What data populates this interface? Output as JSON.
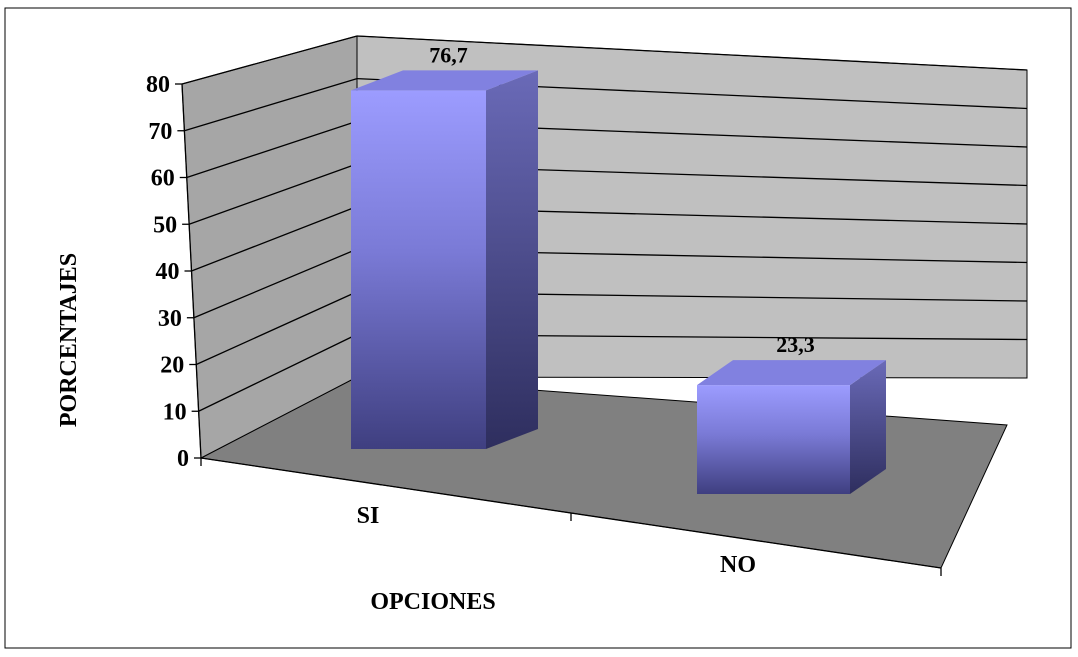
{
  "chart_data": {
    "type": "bar",
    "categories": [
      "SI",
      "NO"
    ],
    "values": [
      76.7,
      23.3
    ],
    "data_labels": [
      "76,7",
      "23,3"
    ],
    "xlabel": "OPCIONES",
    "ylabel": "PORCENTAJES",
    "ylim": [
      0,
      80
    ],
    "yticks": [
      "0",
      "10",
      "20",
      "30",
      "40",
      "50",
      "60",
      "70",
      "80"
    ],
    "grid": true,
    "three_d": true,
    "legend": "none",
    "colors": {
      "bar_front_top": "#9999ff",
      "bar_front_bottom": "#3b3b7a",
      "bar_top": "#8181e0",
      "bar_side": "#4d4d8f",
      "back_wall": "#c0c0c0",
      "side_wall": "#a6a6a6",
      "floor": "#808080"
    }
  }
}
